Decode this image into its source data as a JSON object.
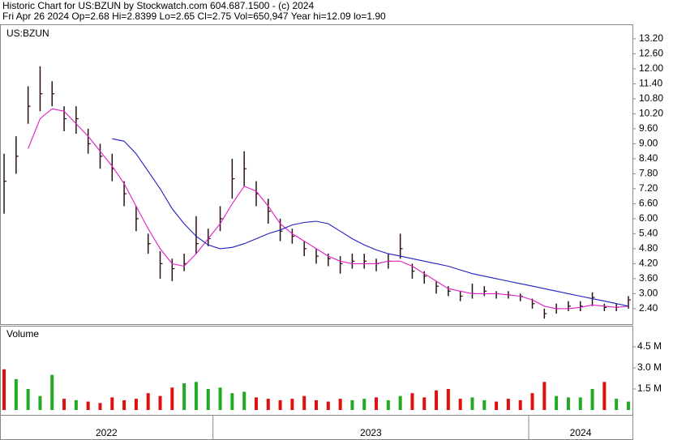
{
  "chart_data": {
    "type": "ohlc",
    "title": "Historic Chart for US:BZUN by Stockwatch.com 604.687.1500 - (c) 2024",
    "subtitle": "Fri Apr 26 2024  Op=2.68  Hi=2.8399  Lo=2.65  Cl=2.75  Vol=650,947  Year hi=12.09  lo=1.90",
    "symbol": "US:BZUN",
    "volume_title": "Volume",
    "color": "#2a1010",
    "close": [
      7.5,
      8.5,
      10.5,
      11,
      11,
      10,
      10,
      9,
      8.5,
      8,
      7,
      6,
      5,
      4.2,
      4,
      4.2,
      5,
      5.2,
      6,
      7.6,
      8,
      7,
      6.3,
      5.5,
      5.3,
      4.8,
      4.5,
      4.4,
      4.2,
      4.3,
      4.3,
      4.2,
      4.3,
      4.8,
      3.9,
      3.7,
      3.3,
      3.1,
      2.9,
      3,
      3.1,
      3,
      2.95,
      2.9,
      2.6,
      2.2,
      2.4,
      2.5,
      2.5,
      2.85,
      2.45,
      2.45,
      2.75
    ],
    "high": [
      8.6,
      9.3,
      11.3,
      12.1,
      11.5,
      10.5,
      10.5,
      9.6,
      9,
      8.6,
      7.5,
      6.5,
      5.4,
      4.7,
      4.4,
      4.6,
      6.1,
      5.6,
      6.5,
      8.4,
      8.7,
      7.5,
      6.8,
      6.0,
      5.6,
      5.1,
      4.8,
      4.6,
      4.5,
      4.6,
      4.6,
      4.4,
      4.6,
      5.4,
      4.2,
      3.9,
      3.5,
      3.3,
      3.1,
      3.4,
      3.3,
      3.1,
      3.1,
      3.0,
      2.8,
      2.4,
      2.6,
      2.7,
      2.7,
      3.05,
      2.6,
      2.6,
      2.9
    ],
    "low": [
      6.2,
      7.8,
      9.8,
      10.3,
      10.5,
      9.5,
      9.4,
      8.6,
      8.0,
      7.5,
      6.5,
      5.5,
      4.6,
      3.6,
      3.5,
      3.9,
      4.6,
      4.9,
      5.5,
      6.8,
      7.3,
      6.5,
      5.8,
      5.1,
      5.0,
      4.5,
      4.2,
      4.1,
      3.8,
      4.0,
      4.0,
      3.9,
      4.0,
      4.4,
      3.6,
      3.4,
      3.0,
      2.9,
      2.7,
      2.8,
      2.9,
      2.8,
      2.8,
      2.7,
      2.4,
      2.0,
      2.2,
      2.3,
      2.3,
      2.5,
      2.3,
      2.3,
      2.4
    ],
    "series": [
      {
        "color": "#e020c8",
        "values": [
          null,
          null,
          8.8,
          10,
          10.4,
          10.3,
          9.8,
          9.3,
          8.7,
          8.1,
          7.4,
          6.5,
          5.6,
          4.8,
          4.2,
          4.1,
          4.6,
          5.2,
          5.8,
          6.6,
          7.3,
          7.1,
          6.5,
          5.8,
          5.4,
          5.1,
          4.8,
          4.5,
          4.3,
          4.2,
          4.2,
          4.2,
          4.3,
          4.3,
          4.1,
          3.8,
          3.5,
          3.2,
          3.1,
          3.0,
          3.0,
          3.0,
          2.95,
          2.9,
          2.75,
          2.5,
          2.4,
          2.4,
          2.45,
          2.55,
          2.5,
          2.45,
          2.5
        ]
      },
      {
        "color": "#2020c0",
        "values": [
          null,
          null,
          null,
          null,
          null,
          null,
          null,
          null,
          null,
          9.2,
          9.1,
          8.6,
          7.9,
          7.2,
          6.4,
          5.8,
          5.3,
          4.95,
          4.8,
          4.85,
          5.0,
          5.2,
          5.4,
          5.55,
          5.75,
          5.85,
          5.9,
          5.8,
          5.5,
          5.2,
          4.95,
          4.75,
          4.6,
          4.5,
          4.4,
          4.3,
          4.2,
          4.1,
          3.95,
          3.8,
          3.7,
          3.6,
          3.5,
          3.4,
          3.3,
          3.2,
          3.1,
          3.0,
          2.9,
          2.8,
          2.7,
          2.6,
          2.5
        ]
      }
    ],
    "volume": [
      2.9,
      2.2,
      1.5,
      1.0,
      2.5,
      0.8,
      0.7,
      0.6,
      0.5,
      0.9,
      0.7,
      0.8,
      1.2,
      1.0,
      1.6,
      1.9,
      2.0,
      1.5,
      1.6,
      1.2,
      1.3,
      0.9,
      0.8,
      0.7,
      0.8,
      1.0,
      0.7,
      0.6,
      0.8,
      0.7,
      0.8,
      0.9,
      0.7,
      1.0,
      1.2,
      0.9,
      1.4,
      1.5,
      0.8,
      0.9,
      0.7,
      0.6,
      0.8,
      0.7,
      1.2,
      2.0,
      1.0,
      0.9,
      0.9,
      1.5,
      2.0,
      0.8,
      0.6
    ],
    "up_color": "#22aa22",
    "down_color": "#dd1111",
    "xlim": [
      -0.34,
      52.34
    ],
    "periods": [
      {
        "label": "2022",
        "start": -0.34,
        "end": 17.4
      },
      {
        "label": "2023",
        "start": 17.4,
        "end": 43.7
      },
      {
        "label": "2024",
        "start": 43.7,
        "end": 52.34
      }
    ],
    "ylim": [
      1.78,
      13.78
    ],
    "yticks": [
      {
        "value": 13.2,
        "label": "13.20"
      },
      {
        "value": 12.6,
        "label": "12.60"
      },
      {
        "value": 12.0,
        "label": "12.00"
      },
      {
        "value": 11.4,
        "label": "11.40"
      },
      {
        "value": 10.8,
        "label": "10.80"
      },
      {
        "value": 10.2,
        "label": "10.20"
      },
      {
        "value": 9.6,
        "label": "9.60"
      },
      {
        "value": 9.0,
        "label": "9.00"
      },
      {
        "value": 8.4,
        "label": "8.40"
      },
      {
        "value": 7.8,
        "label": "7.80"
      },
      {
        "value": 7.2,
        "label": "7.20"
      },
      {
        "value": 6.6,
        "label": "6.60"
      },
      {
        "value": 6.0,
        "label": "6.00"
      },
      {
        "value": 5.4,
        "label": "5.40"
      },
      {
        "value": 4.8,
        "label": "4.80"
      },
      {
        "value": 4.2,
        "label": "4.20"
      },
      {
        "value": 3.6,
        "label": "3.60"
      },
      {
        "value": 3.0,
        "label": "3.00"
      },
      {
        "value": 2.4,
        "label": "2.40"
      }
    ],
    "y2lim": [
      0,
      5.94
    ],
    "y2ticks": [
      {
        "value": 4.5,
        "label": "4.5 M"
      },
      {
        "value": 3.0,
        "label": "3.0 M"
      },
      {
        "value": 1.5,
        "label": "1.5 M"
      }
    ]
  }
}
